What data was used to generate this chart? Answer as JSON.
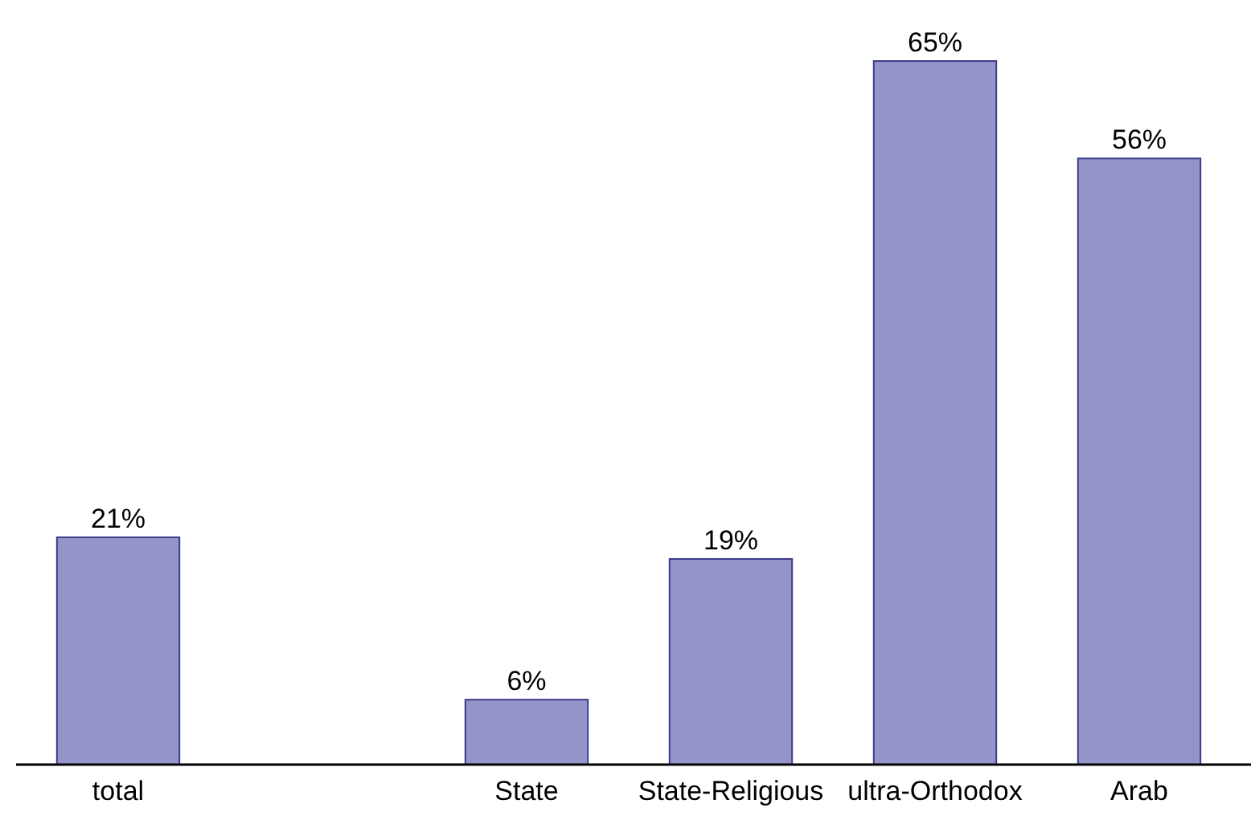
{
  "chart_data": {
    "type": "bar",
    "categories": [
      "total",
      null,
      "State",
      "State-Religious",
      "ultra-Orthodox",
      "Arab"
    ],
    "values": [
      21,
      null,
      6,
      19,
      65,
      56
    ],
    "value_labels": [
      "21%",
      null,
      "6%",
      "19%",
      "65%",
      "56%"
    ],
    "color": "#9494c8",
    "grid": false
  }
}
